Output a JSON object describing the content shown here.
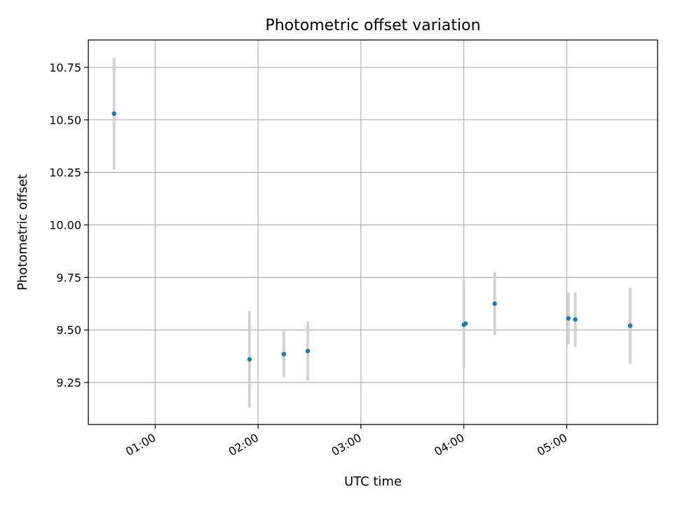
{
  "chart_data": {
    "type": "scatter",
    "title": "Photometric offset variation",
    "xlabel": "UTC time",
    "ylabel": "Photometric offset",
    "x_unit": "UTC time of day (HH:MM)",
    "xlim": [
      "00:21",
      "05:53"
    ],
    "ylim": [
      9.05,
      10.88
    ],
    "xticks": [
      "01:00",
      "02:00",
      "03:00",
      "04:00",
      "05:00"
    ],
    "yticks": [
      "9.25",
      "9.50",
      "9.75",
      "10.00",
      "10.25",
      "10.50",
      "10.75"
    ],
    "grid": true,
    "marker_color": "#1f77b4",
    "errorbar_color": "#d3d3d3",
    "points": [
      {
        "x": "00:36",
        "y": 10.53,
        "yerr": 0.265
      },
      {
        "x": "01:55",
        "y": 9.36,
        "yerr": 0.23
      },
      {
        "x": "02:15",
        "y": 9.385,
        "yerr": 0.11
      },
      {
        "x": "02:29",
        "y": 9.4,
        "yerr": 0.14
      },
      {
        "x": "04:00",
        "y": 9.525,
        "yerr": 0.21
      },
      {
        "x": "04:01",
        "y": 9.53,
        "yerr": 0.005
      },
      {
        "x": "04:18",
        "y": 9.625,
        "yerr": 0.15
      },
      {
        "x": "05:01",
        "y": 9.555,
        "yerr": 0.125
      },
      {
        "x": "05:05",
        "y": 9.55,
        "yerr": 0.13
      },
      {
        "x": "05:37",
        "y": 9.52,
        "yerr": 0.18
      }
    ]
  }
}
